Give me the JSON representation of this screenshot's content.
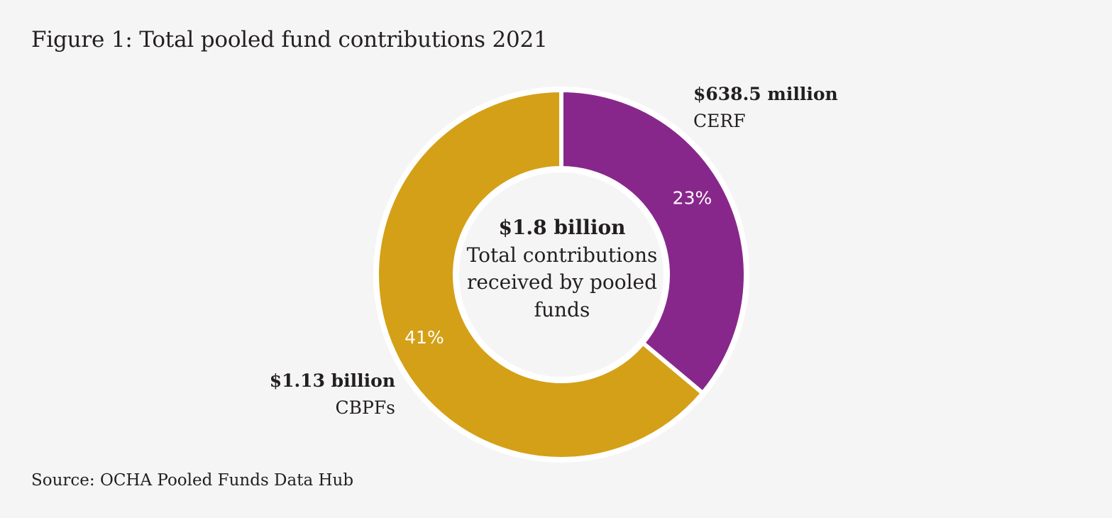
{
  "title": "Figure 1: Total pooled fund contributions 2021",
  "source": "Source: OCHA Pooled Funds Data Hub",
  "center": {
    "amount": "$1.8 billion",
    "description": "Total contributions received by pooled funds"
  },
  "colors": {
    "cerf": "#88278b",
    "cbpf": "#d4a017",
    "background": "#f5f5f5",
    "separator": "#ffffff",
    "text": "#231f20"
  },
  "chart_data": {
    "type": "pie",
    "variant": "donut",
    "title": "Figure 1: Total pooled fund contributions 2021",
    "series": [
      {
        "name": "CERF",
        "amount_label": "$638.5 million",
        "value": 638.5,
        "percent_label": "23%",
        "color": "#88278b"
      },
      {
        "name": "CBPFs",
        "amount_label": "$1.13 billion",
        "value": 1130,
        "percent_label": "41%",
        "color": "#d4a017"
      }
    ],
    "total_label": "$1.8 billion"
  }
}
